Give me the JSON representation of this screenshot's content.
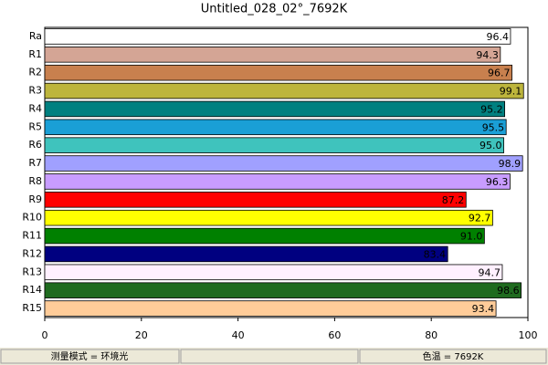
{
  "chart_data": {
    "type": "barh",
    "title": "Untitled_028_02°_7692K",
    "categories": [
      "Ra",
      "R1",
      "R2",
      "R3",
      "R4",
      "R5",
      "R6",
      "R7",
      "R8",
      "R9",
      "R10",
      "R11",
      "R12",
      "R13",
      "R14",
      "R15"
    ],
    "values": [
      96.4,
      94.3,
      96.7,
      99.1,
      95.2,
      95.5,
      95.0,
      98.9,
      96.3,
      87.2,
      92.7,
      91.0,
      83.4,
      94.7,
      98.6,
      93.4
    ],
    "value_labels": [
      "96.4",
      "94.3",
      "96.7",
      "99.1",
      "95.2",
      "95.5",
      "95.0",
      "98.9",
      "96.3",
      "87.2",
      "92.7",
      "91.0",
      "83.4",
      "94.7",
      "98.6",
      "93.4"
    ],
    "colors": [
      "#ffffff",
      "#d4a595",
      "#c8804e",
      "#bdb53c",
      "#008080",
      "#1a9fd6",
      "#3fc3bd",
      "#a0a0ff",
      "#c89cff",
      "#ff0000",
      "#ffff00",
      "#008000",
      "#000080",
      "#fff0ff",
      "#1f6b1f",
      "#ffcc99"
    ],
    "xlim": [
      0,
      100
    ],
    "xticks": [
      0,
      20,
      40,
      60,
      80,
      100
    ]
  },
  "status_bar": {
    "left": "测量模式 = 环境光",
    "right": "色温 = 7692K"
  }
}
